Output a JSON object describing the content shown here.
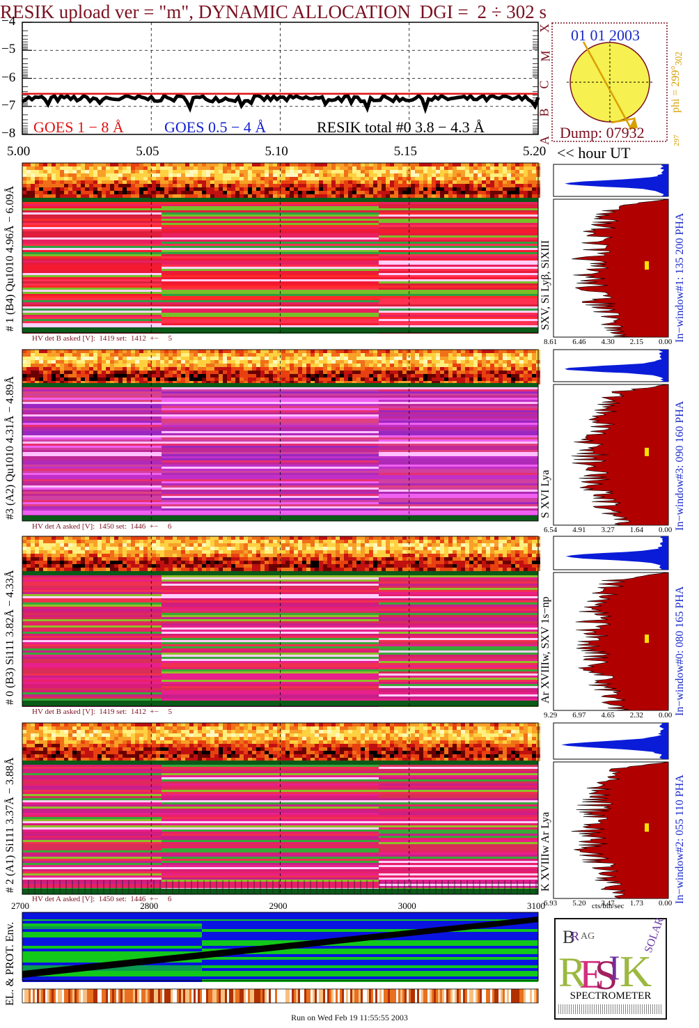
{
  "title": {
    "prefix": "RESIK upload ver = \"m\", DYNAMIC ALLOCATION",
    "dgi": "DGI =",
    "range": "2 ÷ 302 s"
  },
  "goes_panel": {
    "yticks": [
      "−4",
      "−5",
      "−6",
      "−7",
      "−8"
    ],
    "legend_goes18": "GOES 1 − 8 Å",
    "legend_goes054": "GOES 0.5 − 4 Å",
    "legend_resik": "RESIK total #0  3.8 − 4.3 Å",
    "xticks": [
      "5.00",
      "5.05",
      "5.10",
      "5.15",
      "5.20"
    ],
    "xunit": "<< hour UT",
    "class_letters": [
      "X",
      "M",
      "C",
      "B",
      "A"
    ]
  },
  "sun_panel": {
    "date": "01 01 2003",
    "dump": "Dump: 07932",
    "phi": "phi = 299°",
    "phi_sub": "302",
    "phi_low": "297"
  },
  "detectors": [
    {
      "left_label": "# 1 (B4) Qu1010 4.96Å − 6.09Å",
      "lines_label": "SXV, Si Lyβ, SiXIII",
      "window_label": "In−window#1:  135 200 PHA",
      "hv": "HV det B asked [V]:  1419 set:  1412  +−     5",
      "pha_ticks": [
        "8.61",
        "6.46",
        "4.30",
        "2.15",
        "0.00"
      ],
      "palette": "red"
    },
    {
      "left_label": "#3 (A2) Qu1010  4.31Å − 4.89Å",
      "lines_label": "S XVI Lya",
      "window_label": "In−window#3:  090 160 PHA",
      "hv": "HV det A asked [V]:  1450 set:  1446  +−     6",
      "pha_ticks": [
        "6.54",
        "4.91",
        "3.27",
        "1.64",
        "0.00"
      ],
      "palette": "violet"
    },
    {
      "left_label": "# 0 (B3) Si111  3.82Å − 4.33Å",
      "lines_label": "Ar XVIIIw, SXV 1s−np",
      "window_label": "In−window#0:  080 165 PHA",
      "hv": "HV det B asked [V]:  1419 set:  1412  +−     5",
      "pha_ticks": [
        "9.29",
        "6.97",
        "4.65",
        "2.32",
        "0.00"
      ],
      "palette": "pink"
    },
    {
      "left_label": "# 2 (A1) Si111  3.37Å − 3.88Å",
      "lines_label": "K XVIIIw  Ar Lya",
      "window_label": "In−window#2:  055 110 PHA",
      "hv": "HV det A asked [V]:  1450 set:  1446  +−     6",
      "pha_ticks": [
        "6.93",
        "5.20",
        "3.47",
        "1.73",
        "0.00"
      ],
      "palette": "pink"
    }
  ],
  "pha_unit": "cts/bin/sec",
  "env_panel": {
    "xticks": [
      "2700",
      "2800",
      "2900",
      "3000",
      "3100"
    ],
    "label": "EL. & PROT. Env."
  },
  "logo": {
    "bottom": "SPECTROMETER",
    "letters": [
      "B",
      "R",
      "A",
      "G",
      "R",
      "E",
      "S",
      "I",
      "K",
      "S",
      "O",
      "L",
      "A",
      "R"
    ]
  },
  "footer": "Run on Wed Feb 19 11:55:55 2003",
  "colors": {
    "title": "#7a1020",
    "goes_red": "#e01010",
    "goes_blue": "#1020d0",
    "pha_red": "#b00000",
    "pha_blue": "#0a1cd8",
    "date_blue": "#1828c8",
    "sun_yellow": "#f6f050",
    "arrow": "#d8a000"
  },
  "chart_data": [
    {
      "type": "line",
      "title": "",
      "xlabel": "<< hour UT",
      "ylabel": "",
      "xlim": [
        5.0,
        5.2
      ],
      "ylim": [
        -8,
        -4
      ],
      "series": [
        {
          "name": "GOES 1 − 8 Å",
          "level": -6.55
        },
        {
          "name": "GOES 0.5 − 4 Å"
        },
        {
          "name": "RESIK total #0  3.8 − 4.3 Å",
          "level": -6.72
        }
      ]
    },
    {
      "type": "area",
      "x_ticks": [
        2700,
        2800,
        2900,
        3000,
        3100
      ],
      "label": "EL. & PROT. Env."
    }
  ]
}
